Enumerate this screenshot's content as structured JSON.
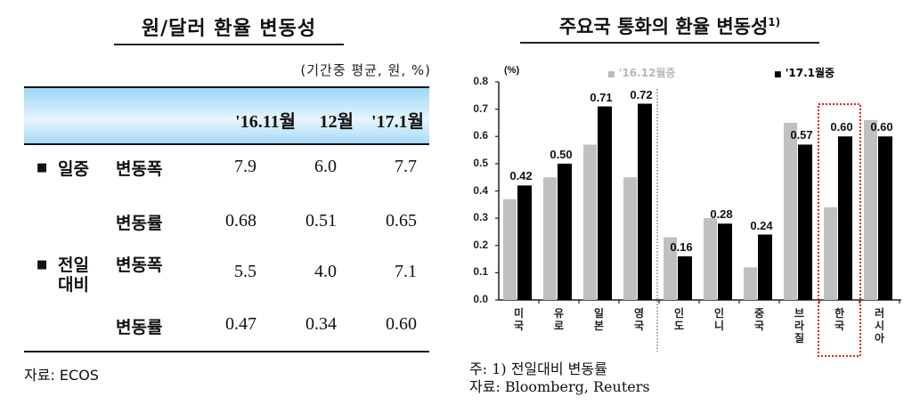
{
  "left_panel": {
    "title": "원/달러 환율 변동성",
    "unit_note": "(기간중 평균, 원, %)",
    "columns": [
      "'16.11월",
      "12월",
      "'17.1월"
    ],
    "groups": [
      {
        "bullet": "■",
        "group_label_lines": [
          "일중"
        ],
        "rows": [
          {
            "label": "변동폭",
            "values": [
              "7.9",
              "6.0",
              "7.7"
            ]
          },
          {
            "label": "변동률",
            "values": [
              "0.68",
              "0.51",
              "0.65"
            ]
          }
        ]
      },
      {
        "bullet": "■",
        "group_label_lines": [
          "전일",
          "대비"
        ],
        "rows": [
          {
            "label": "변동폭",
            "values": [
              "5.5",
              "4.0",
              "7.1"
            ]
          },
          {
            "label": "변동률",
            "values": [
              "0.47",
              "0.34",
              "0.60"
            ]
          }
        ]
      }
    ],
    "source": "자료: ECOS"
  },
  "right_panel": {
    "title": "주요국 통화의 환율 변동성",
    "title_footnote_mark": "1)",
    "y_unit": "(%)",
    "legend": [
      {
        "marker": "■",
        "label": "'16.12월중",
        "color": "#c0c0c0"
      },
      {
        "marker": "■",
        "label": "'17.1월중",
        "color": "#000000"
      }
    ],
    "notes": [
      "주: 1) 전일대비 변동률",
      "자료: Bloomberg, Reuters"
    ],
    "highlight_category": "한국",
    "highlight_color": "#e0202a"
  },
  "chart_data": {
    "type": "bar",
    "title": "주요국 통화의 환율 변동성1)",
    "xlabel": "",
    "ylabel": "(%)",
    "ylim": [
      0.0,
      0.8
    ],
    "yticks": [
      "0.0",
      "0.1",
      "0.2",
      "0.3",
      "0.4",
      "0.5",
      "0.6",
      "0.7",
      "0.8"
    ],
    "categories": [
      "미국",
      "유로",
      "일본",
      "영국",
      "인도",
      "인니",
      "중국",
      "브라질",
      "한국",
      "러시아"
    ],
    "series": [
      {
        "name": "'16.12월중",
        "color": "#c0c0c0",
        "values": [
          0.37,
          0.45,
          0.57,
          0.45,
          0.23,
          0.3,
          0.12,
          0.65,
          0.34,
          0.66
        ]
      },
      {
        "name": "'17.1월중",
        "color": "#000000",
        "values": [
          0.42,
          0.5,
          0.71,
          0.72,
          0.16,
          0.28,
          0.24,
          0.57,
          0.6,
          0.6
        ],
        "data_labels": [
          "0.42",
          "0.50",
          "0.71",
          "0.72",
          "0.16",
          "0.28",
          "0.24",
          "0.57",
          "0.60",
          "0.60"
        ]
      }
    ],
    "grid": false,
    "legend_position": "top",
    "annotations": [
      "dotted separator between 영국 and 인도",
      "red dotted box around 한국"
    ]
  }
}
